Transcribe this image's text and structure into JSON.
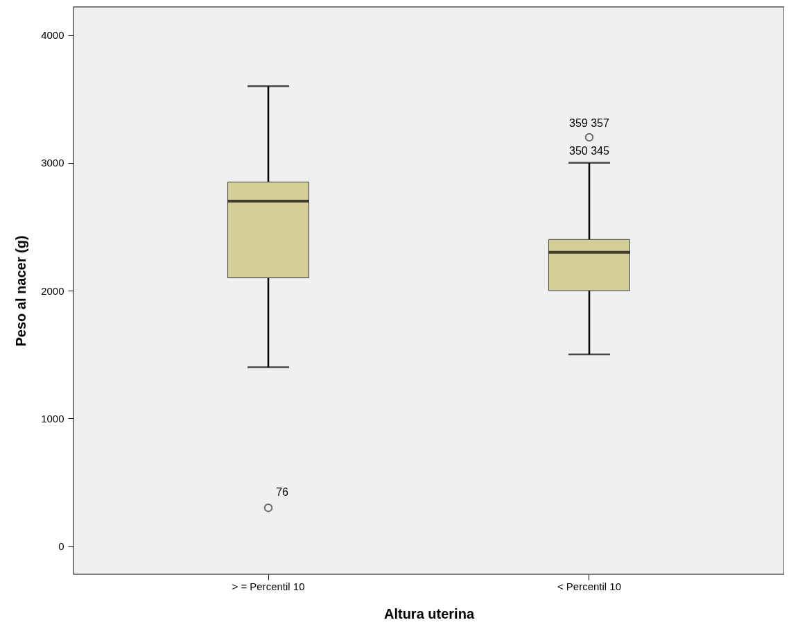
{
  "chart_data": {
    "type": "box",
    "xlabel": "Altura uterina",
    "ylabel": "Peso al nacer (g)",
    "categories": [
      "> = Percentil 10",
      "< Percentil 10"
    ],
    "boxes": [
      {
        "low": 1400,
        "q1": 2100,
        "median": 2700,
        "q3": 2850,
        "high": 3600,
        "outliers": [
          300
        ]
      },
      {
        "low": 1500,
        "q1": 2000,
        "median": 2300,
        "q3": 2400,
        "high": 3000,
        "outliers": [
          3200
        ]
      }
    ],
    "color": "#d3ce97",
    "ylim": [
      -220,
      4220
    ],
    "yticks": [
      0,
      1000,
      2000,
      3000,
      4000
    ],
    "grid": false,
    "annotations": [
      "76",
      "359 357",
      "350 345"
    ]
  }
}
